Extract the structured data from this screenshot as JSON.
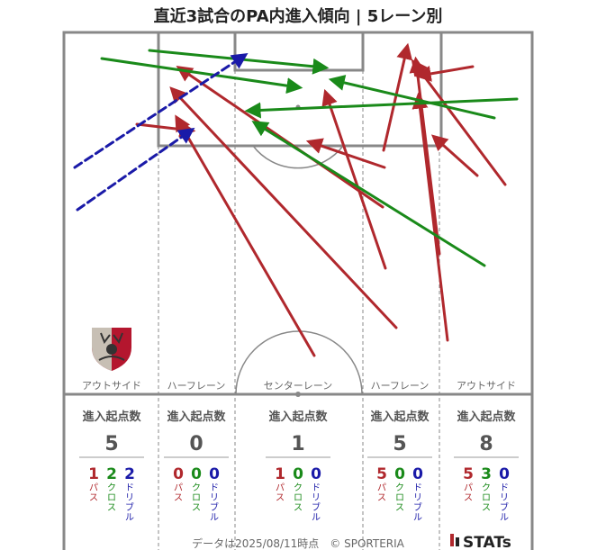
{
  "title": "直近3試合のPA内進入傾向 | 5レーン別",
  "footer": "データは2025/08/11時点　© SPORTERIA",
  "brand": "STATs",
  "colors": {
    "pass": "#b0282d",
    "cross": "#1a8a1a",
    "dribble": "#1a1aa8",
    "line": "#888888"
  },
  "type_labels": {
    "pass": "パス",
    "cross": "クロス",
    "dribble": "ドリブル"
  },
  "chart_data": {
    "type": "arrow-map",
    "lanes": [
      {
        "name": "アウトサイド",
        "header": "進入起点数",
        "total": "5",
        "pass": "1",
        "cross": "2",
        "dribble": "2"
      },
      {
        "name": "ハーフレーン",
        "header": "進入起点数",
        "total": "0",
        "pass": "0",
        "cross": "0",
        "dribble": "0"
      },
      {
        "name": "センターレーン",
        "header": "進入起点数",
        "total": "1",
        "pass": "1",
        "cross": "0",
        "dribble": "0"
      },
      {
        "name": "ハーフレーン",
        "header": "進入起点数",
        "total": "5",
        "pass": "5",
        "cross": "0",
        "dribble": "0"
      },
      {
        "name": "アウトサイド",
        "header": "進入起点数",
        "total": "8",
        "pass": "5",
        "cross": "3",
        "dribble": "0"
      }
    ],
    "arrows": [
      {
        "type": "pass",
        "from": [
          349,
          395
        ],
        "to": [
          197,
          132
        ]
      },
      {
        "type": "pass",
        "from": [
          440,
          364
        ],
        "to": [
          192,
          100
        ]
      },
      {
        "type": "pass",
        "from": [
          425,
          230
        ],
        "to": [
          200,
          76
        ]
      },
      {
        "type": "pass",
        "from": [
          152,
          138
        ],
        "to": [
          212,
          145
        ]
      },
      {
        "type": "pass",
        "from": [
          428,
          298
        ],
        "to": [
          362,
          104
        ]
      },
      {
        "type": "pass",
        "from": [
          426,
          167
        ],
        "to": [
          452,
          53
        ]
      },
      {
        "type": "pass",
        "from": [
          427,
          186
        ],
        "to": [
          345,
          158
        ]
      },
      {
        "type": "pass",
        "from": [
          497,
          378
        ],
        "to": [
          465,
          108
        ]
      },
      {
        "type": "pass",
        "from": [
          488,
          282
        ],
        "to": [
          462,
          68
        ]
      },
      {
        "type": "pass",
        "from": [
          561,
          205
        ],
        "to": [
          460,
          70
        ]
      },
      {
        "type": "pass",
        "from": [
          525,
          74
        ],
        "to": [
          466,
          84
        ]
      },
      {
        "type": "pass",
        "from": [
          530,
          195
        ],
        "to": [
          483,
          153
        ]
      },
      {
        "type": "cross",
        "from": [
          113,
          65
        ],
        "to": [
          331,
          97
        ]
      },
      {
        "type": "cross",
        "from": [
          166,
          56
        ],
        "to": [
          360,
          75
        ]
      },
      {
        "type": "cross",
        "from": [
          574,
          110
        ],
        "to": [
          277,
          123
        ]
      },
      {
        "type": "cross",
        "from": [
          549,
          131
        ],
        "to": [
          370,
          89
        ]
      },
      {
        "type": "cross",
        "from": [
          538,
          295
        ],
        "to": [
          284,
          137
        ]
      },
      {
        "type": "dribble",
        "from": [
          83,
          186
        ],
        "to": [
          271,
          62
        ]
      },
      {
        "type": "dribble",
        "from": [
          86,
          233
        ],
        "to": [
          212,
          145
        ]
      }
    ]
  }
}
